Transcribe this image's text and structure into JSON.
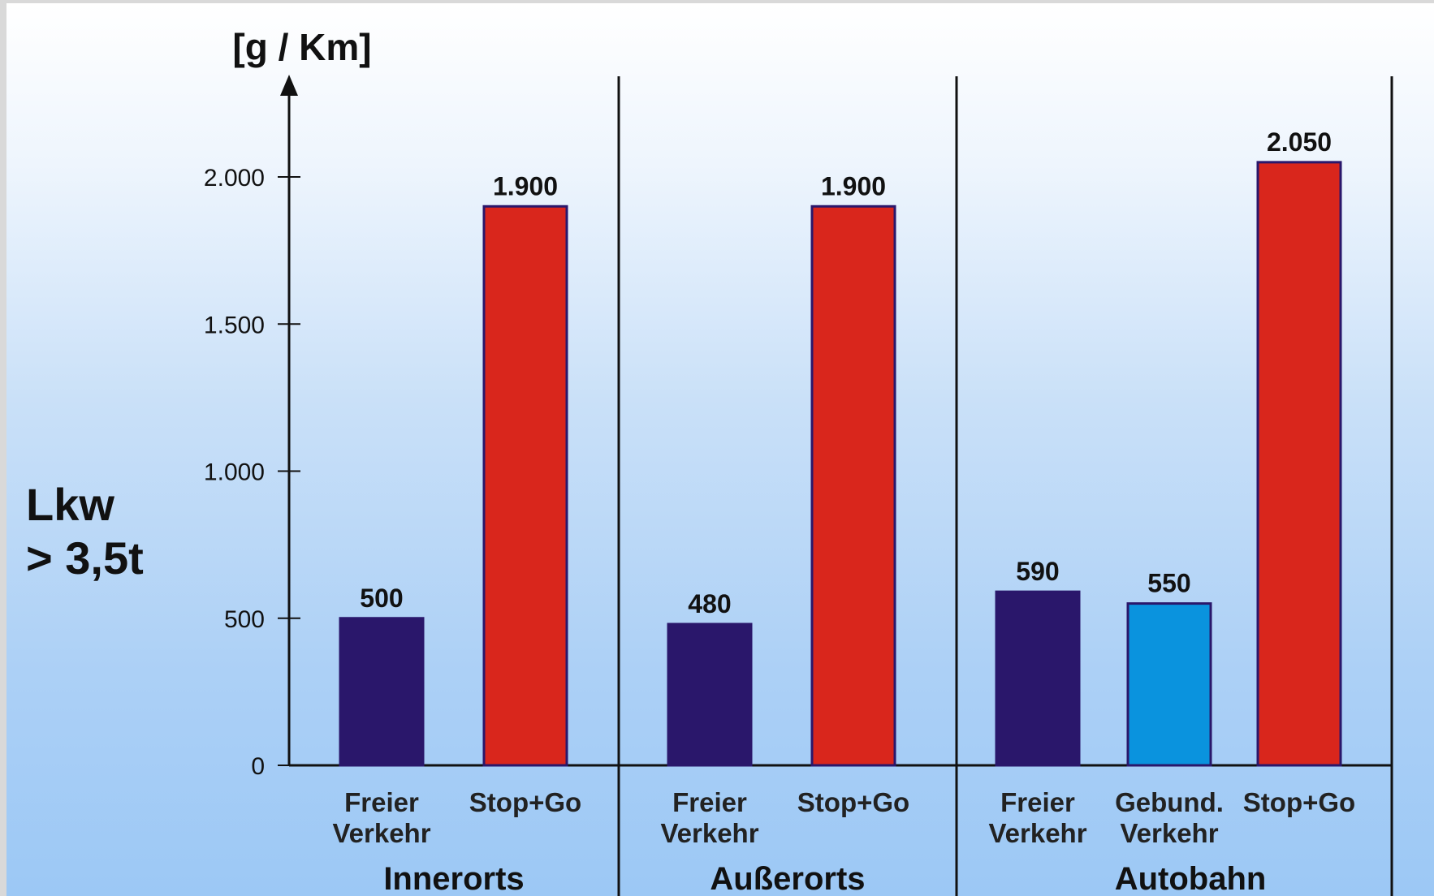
{
  "chart_data": {
    "type": "bar",
    "title": "",
    "ylabel": "[g / Km]",
    "side_label_lines": [
      "Lkw",
      "> 3,5t"
    ],
    "ylim": [
      0,
      2300
    ],
    "yticks": [
      0,
      500,
      1000,
      1500,
      2000
    ],
    "ytick_labels": [
      "0",
      "500",
      "1.000",
      "1.500",
      "2.000"
    ],
    "grid": false,
    "groups": [
      {
        "name": "Innerorts",
        "bars": [
          {
            "label_lines": [
              "Freier",
              "Verkehr"
            ],
            "value": 500,
            "value_label": "500",
            "color": "#2a176b"
          },
          {
            "label_lines": [
              "Stop+Go"
            ],
            "value": 1900,
            "value_label": "1.900",
            "color": "#d9261c"
          }
        ]
      },
      {
        "name": "Außerorts",
        "bars": [
          {
            "label_lines": [
              "Freier",
              "Verkehr"
            ],
            "value": 480,
            "value_label": "480",
            "color": "#2a176b"
          },
          {
            "label_lines": [
              "Stop+Go"
            ],
            "value": 1900,
            "value_label": "1.900",
            "color": "#d9261c"
          }
        ]
      },
      {
        "name": "Autobahn",
        "bars": [
          {
            "label_lines": [
              "Freier",
              "Verkehr"
            ],
            "value": 590,
            "value_label": "590",
            "color": "#2a176b"
          },
          {
            "label_lines": [
              "Gebund.",
              "Verkehr"
            ],
            "value": 550,
            "value_label": "550",
            "color": "#0a93de"
          },
          {
            "label_lines": [
              "Stop+Go"
            ],
            "value": 2050,
            "value_label": "2.050",
            "color": "#d9261c"
          }
        ]
      }
    ]
  }
}
